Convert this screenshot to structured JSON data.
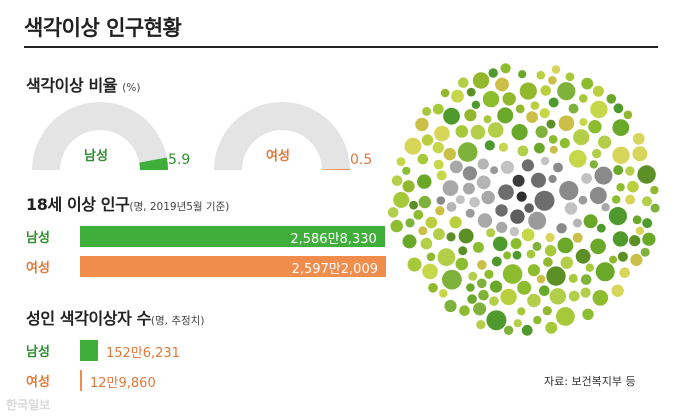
{
  "title": "색각이상 인구현황",
  "colors": {
    "male": "#3fae3a",
    "female": "#f08c4c",
    "gauge_track": "#e4e4e4",
    "male_text": "#2e8f2e",
    "female_text": "#e0783a"
  },
  "chart_data": [
    {
      "type": "gauge",
      "title": "색각이상 비율",
      "unit_note": "(%)",
      "max": 100,
      "series": [
        {
          "name": "남성",
          "value": 5.9,
          "label": "5.9"
        },
        {
          "name": "여성",
          "value": 0.5,
          "label": "0.5"
        }
      ]
    },
    {
      "type": "bar",
      "title": "18세 이상 인구",
      "unit_note": "(명, 2019년5월 기준)",
      "categories": [
        "남성",
        "여성"
      ],
      "values": [
        25868330,
        25972009
      ],
      "labels": [
        "2,586만8,330",
        "2,597만2,009"
      ]
    },
    {
      "type": "bar",
      "title": "성인 색각이상자 수",
      "unit_note": "(명, 추정치)",
      "categories": [
        "남성",
        "여성"
      ],
      "values": [
        1526231,
        129860
      ],
      "labels": [
        "152만6,231",
        "12만9,860"
      ]
    }
  ],
  "source": "자료: 보건복지부 등",
  "watermark": "한국일보"
}
